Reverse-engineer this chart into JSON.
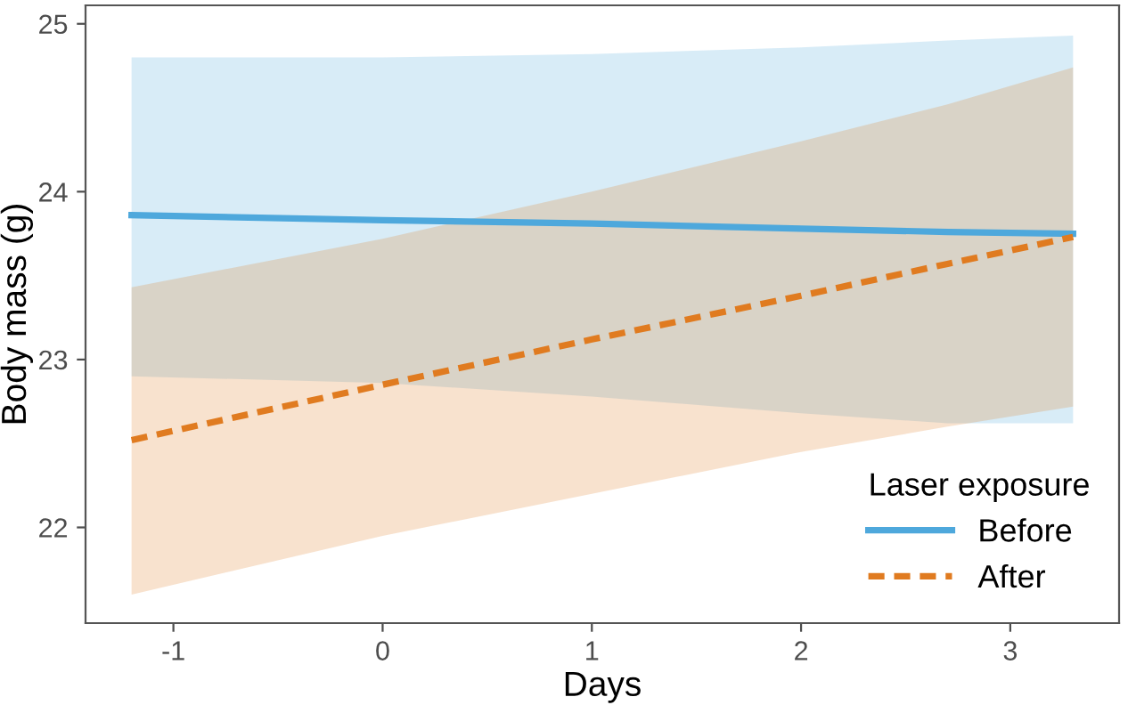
{
  "chart_data": {
    "type": "line",
    "xlabel": "Days",
    "ylabel": "Body mass (g)",
    "legend_title": "Laser exposure",
    "xlim": [
      -1.42,
      3.52
    ],
    "xticks": [
      -1,
      0,
      1,
      2,
      3
    ],
    "ylim": [
      21.43,
      25.11
    ],
    "yticks": [
      22,
      23,
      24,
      25
    ],
    "grid": false,
    "legend": "bottom right",
    "marker": "none",
    "series": [
      {
        "name": "Before",
        "color": "#4ea8dc",
        "line_style": "solid",
        "x": [
          -1.2,
          0,
          1,
          2,
          2.7,
          3.3
        ],
        "values": [
          23.86,
          23.83,
          23.81,
          23.78,
          23.76,
          23.75
        ],
        "lower": [
          22.9,
          22.86,
          22.78,
          22.68,
          22.62,
          22.62
        ],
        "upper": [
          24.8,
          24.8,
          24.82,
          24.86,
          24.9,
          24.93
        ]
      },
      {
        "name": "After",
        "color": "#e07b20",
        "line_style": "dashed",
        "x": [
          -1.2,
          0,
          1,
          2,
          2.7,
          3.3
        ],
        "values": [
          22.52,
          22.85,
          23.12,
          23.38,
          23.57,
          23.73
        ],
        "lower": [
          21.6,
          21.95,
          22.2,
          22.45,
          22.6,
          22.72
        ],
        "upper": [
          23.43,
          23.72,
          24.0,
          24.3,
          24.52,
          24.74
        ]
      }
    ]
  }
}
